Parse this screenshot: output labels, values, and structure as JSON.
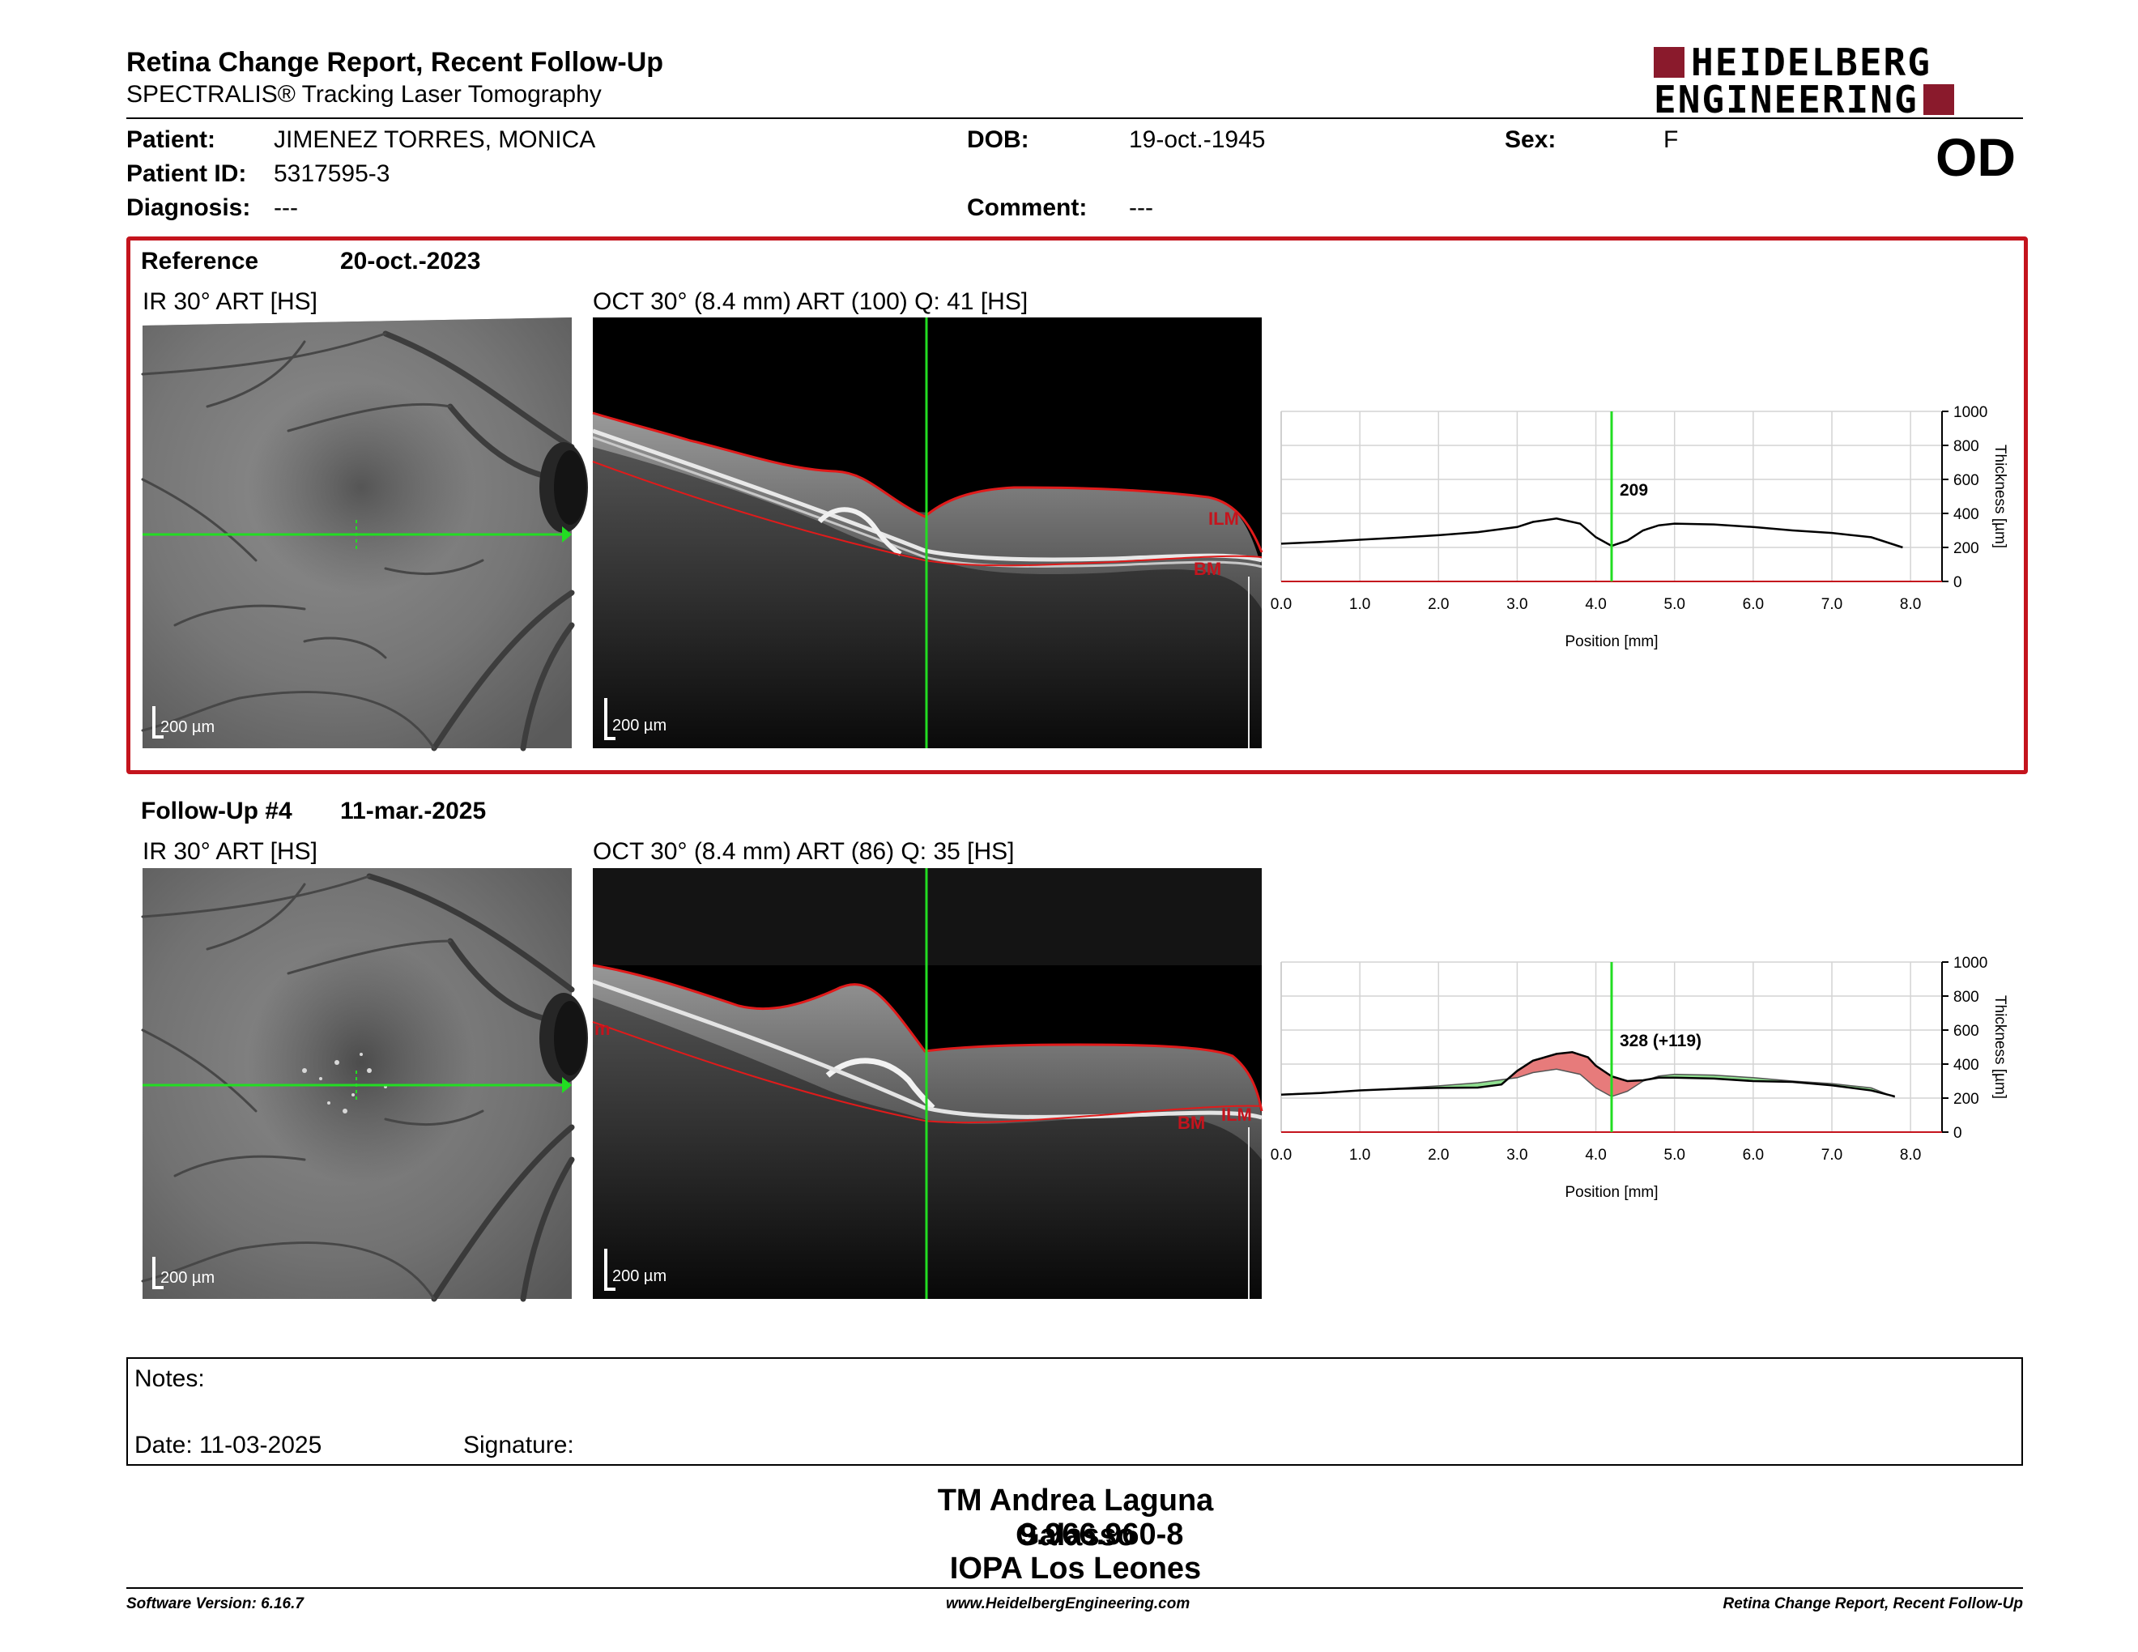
{
  "header": {
    "title": "Retina Change Report, Recent Follow-Up",
    "subtitle": "SPECTRALIS® Tracking Laser Tomography",
    "logo_line1": "HEIDELBERG",
    "logo_line2": "ENGINEERING",
    "logo_color": "#8a1a2c"
  },
  "patient": {
    "patient_label": "Patient:",
    "patient_value": "JIMENEZ TORRES, MONICA",
    "id_label": "Patient ID:",
    "id_value": "5317595-3",
    "diagnosis_label": "Diagnosis:",
    "diagnosis_value": "---",
    "dob_label": "DOB:",
    "dob_value": "19-oct.-1945",
    "comment_label": "Comment:",
    "comment_value": "---",
    "sex_label": "Sex:",
    "sex_value": "F",
    "eye": "OD"
  },
  "reference": {
    "label": "Reference",
    "date": "20-oct.-2023",
    "ir_caption": "IR 30° ART [HS]",
    "oct_caption": "OCT 30° (8.4 mm) ART (100) Q: 41 [HS]",
    "scale_label": "200 µm",
    "ilm_label": "ILM",
    "bm_label": "BM"
  },
  "followup": {
    "label": "Follow-Up #4",
    "date": "11-mar.-2025",
    "ir_caption": "IR 30° ART [HS]",
    "oct_caption": "OCT 30° (8.4 mm) ART (86) Q: 35 [HS]",
    "scale_label": "200 µm",
    "ilm_label": "ILM",
    "bm_label": "BM",
    "ilm_left_label": "m"
  },
  "chart_data": [
    {
      "type": "line",
      "xlabel": "Position [mm]",
      "ylabel": "Thickness [µm]",
      "xlim": [
        0,
        8.4
      ],
      "ylim": [
        0,
        1000
      ],
      "x_ticks": [
        "0.0",
        "1.0",
        "2.0",
        "3.0",
        "4.0",
        "5.0",
        "6.0",
        "7.0",
        "8.0"
      ],
      "y_ticks": [
        "0",
        "200",
        "400",
        "600",
        "800",
        "1000"
      ],
      "grid": true,
      "cursor_x": 4.2,
      "cursor_label": "209",
      "series": [
        {
          "x": [
            0.0,
            0.5,
            1.0,
            1.5,
            2.0,
            2.5,
            3.0,
            3.2,
            3.5,
            3.8,
            4.0,
            4.2,
            4.4,
            4.6,
            4.8,
            5.0,
            5.5,
            6.0,
            6.5,
            7.0,
            7.5,
            7.9
          ],
          "y": [
            222,
            232,
            245,
            258,
            272,
            290,
            320,
            350,
            370,
            340,
            260,
            209,
            240,
            300,
            330,
            340,
            335,
            320,
            300,
            285,
            260,
            200
          ]
        }
      ]
    },
    {
      "type": "line",
      "xlabel": "Position [mm]",
      "ylabel": "Thickness [µm]",
      "xlim": [
        0,
        8.4
      ],
      "ylim": [
        0,
        1000
      ],
      "x_ticks": [
        "0.0",
        "1.0",
        "2.0",
        "3.0",
        "4.0",
        "5.0",
        "6.0",
        "7.0",
        "8.0"
      ],
      "y_ticks": [
        "0",
        "200",
        "400",
        "600",
        "800",
        "1000"
      ],
      "grid": true,
      "cursor_x": 4.2,
      "cursor_label": "328 (+119)",
      "increase_color": "#e77b7b",
      "decrease_color": "#8fdf8f",
      "series": [
        {
          "role": "reference",
          "x": [
            0.0,
            0.5,
            1.0,
            1.5,
            2.0,
            2.5,
            3.0,
            3.2,
            3.5,
            3.8,
            4.0,
            4.2,
            4.4,
            4.6,
            4.8,
            5.0,
            5.5,
            6.0,
            6.5,
            7.0,
            7.5,
            7.8
          ],
          "y": [
            222,
            232,
            245,
            258,
            272,
            290,
            320,
            350,
            370,
            340,
            260,
            209,
            240,
            300,
            330,
            340,
            335,
            320,
            300,
            285,
            260,
            205
          ]
        },
        {
          "role": "follow-up",
          "x": [
            0.0,
            0.5,
            1.0,
            1.5,
            2.0,
            2.5,
            2.8,
            3.0,
            3.2,
            3.5,
            3.7,
            3.9,
            4.0,
            4.2,
            4.4,
            4.6,
            4.8,
            5.0,
            5.5,
            6.0,
            6.5,
            7.0,
            7.5,
            7.8
          ],
          "y": [
            220,
            230,
            245,
            255,
            260,
            262,
            280,
            360,
            420,
            460,
            470,
            440,
            390,
            328,
            300,
            305,
            320,
            320,
            315,
            300,
            295,
            275,
            245,
            210
          ]
        }
      ]
    }
  ],
  "notes": {
    "notes_label": "Notes:",
    "date_label": "Date: 11-03-2025",
    "signature_label": "Signature:"
  },
  "signature": {
    "name": "TM Andrea Laguna Galasso",
    "id": "9.966.960-8",
    "org": "IOPA Los Leones"
  },
  "footer": {
    "software": "Software Version: 6.16.7",
    "website": "www.HeidelbergEngineering.com",
    "report_name": "Retina Change Report, Recent Follow-Up"
  }
}
